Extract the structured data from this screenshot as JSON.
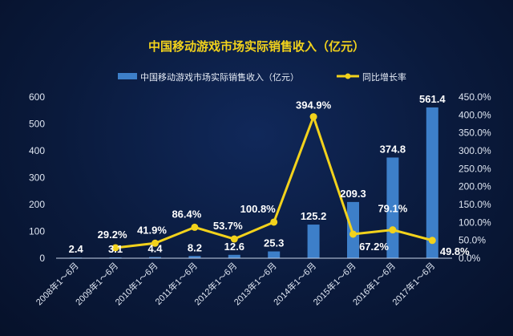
{
  "chart_data": {
    "type": "bar",
    "title": "中国移动游戏市场实际销售收入（亿元）",
    "categories": [
      "2008年1～6月",
      "2009年1～6月",
      "2010年1～6月",
      "2011年1～6月",
      "2012年1～6月",
      "2013年1～6月",
      "2014年1～6月",
      "2015年1～6月",
      "2016年1～6月",
      "2017年1～6月"
    ],
    "series": [
      {
        "name": "中国移动游戏市场实际销售收入（亿元）",
        "type": "bar",
        "axis": "left",
        "color": "#3d7fc9",
        "values": [
          2.4,
          3.1,
          4.4,
          8.2,
          12.6,
          25.3,
          125.2,
          209.3,
          374.8,
          561.4
        ],
        "labels": [
          "2.4",
          "3.1",
          "4.4",
          "8.2",
          "12.6",
          "25.3",
          "125.2",
          "209.3",
          "374.8",
          "561.4"
        ]
      },
      {
        "name": "同比增长率",
        "type": "line",
        "axis": "right",
        "color": "#f2d21c",
        "values": [
          null,
          29.2,
          41.9,
          86.4,
          53.7,
          100.8,
          394.9,
          67.2,
          79.1,
          49.8
        ],
        "labels": [
          "",
          "29.2%",
          "41.9%",
          "86.4%",
          "53.7%",
          "100.8%",
          "394.9%",
          "67.2%",
          "79.1%",
          "49.8%"
        ]
      }
    ],
    "ylim": [
      0,
      600
    ],
    "yticks": [
      "0",
      "100",
      "200",
      "300",
      "400",
      "500",
      "600"
    ],
    "y2lim": [
      0,
      450
    ],
    "y2ticks": [
      "0.0%",
      "50.0%",
      "100.0%",
      "150.0%",
      "200.0%",
      "250.0%",
      "300.0%",
      "350.0%",
      "400.0%",
      "450.0%"
    ],
    "legend": "top-center",
    "grid": false
  }
}
